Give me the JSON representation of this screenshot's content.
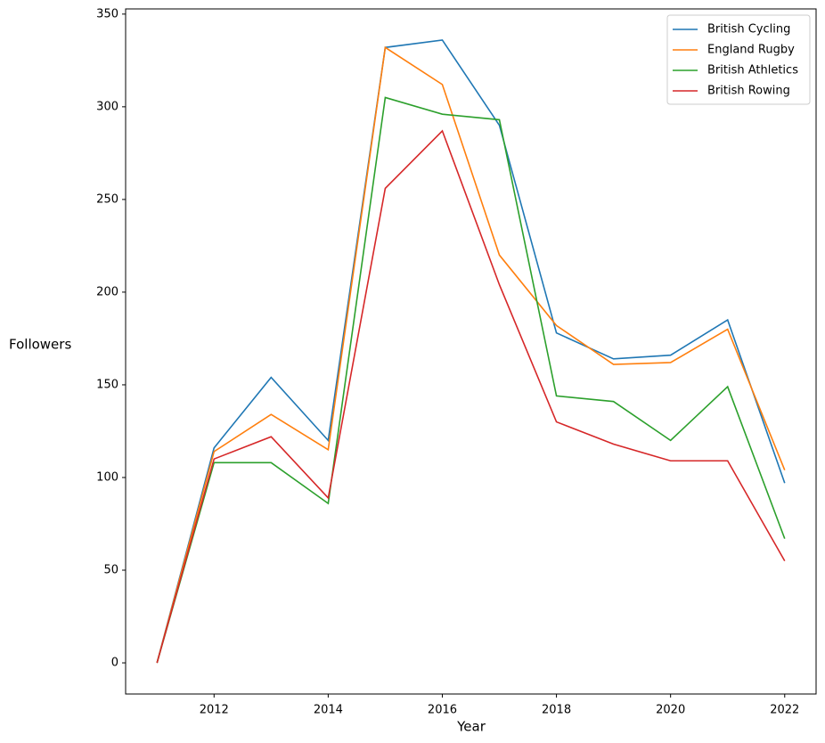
{
  "chart_data": {
    "type": "line",
    "x_label": "Year",
    "y_label": "Followers",
    "x": [
      2011,
      2012,
      2013,
      2014,
      2015,
      2016,
      2017,
      2018,
      2019,
      2020,
      2021,
      2022
    ],
    "series": [
      {
        "name": "British Cycling",
        "color": "#1f77b4",
        "values": [
          0,
          116,
          154,
          120,
          332,
          336,
          290,
          178,
          164,
          166,
          185,
          97
        ]
      },
      {
        "name": "England Rugby",
        "color": "#ff7f0e",
        "values": [
          0,
          114,
          134,
          115,
          332,
          312,
          220,
          182,
          161,
          162,
          180,
          104
        ]
      },
      {
        "name": "British Athletics",
        "color": "#2ca02c",
        "values": [
          0,
          108,
          108,
          86,
          305,
          296,
          293,
          144,
          141,
          120,
          149,
          67
        ]
      },
      {
        "name": "British Rowing",
        "color": "#d62728",
        "values": [
          0,
          110,
          122,
          89,
          256,
          287,
          204,
          130,
          118,
          109,
          109,
          55
        ]
      }
    ],
    "xlim": [
      2010.45,
      2022.55
    ],
    "ylim": [
      -16.8,
      352.8
    ],
    "xticks": [
      2012,
      2014,
      2016,
      2018,
      2020,
      2022
    ],
    "yticks": [
      0,
      50,
      100,
      150,
      200,
      250,
      300,
      350
    ],
    "grid": false,
    "legend": "upper right"
  }
}
